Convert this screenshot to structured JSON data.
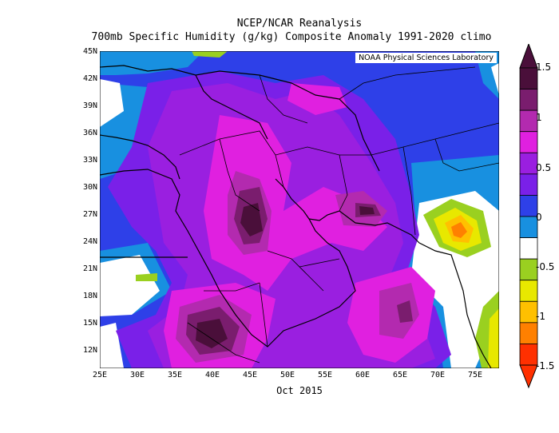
{
  "title": "NCEP/NCAR Reanalysis",
  "subtitle": "700mb Specific Humidity (g/kg) Composite Anomaly 1991-2020 climo",
  "credit": "NOAA Physical Sciences Laboratory",
  "x_label": "Oct 2015",
  "map": {
    "lon_range": [
      25,
      78
    ],
    "lat_range": [
      10,
      45
    ],
    "lat_ticks": [
      "45N",
      "42N",
      "39N",
      "36N",
      "33N",
      "30N",
      "27N",
      "24N",
      "21N",
      "18N",
      "15N",
      "12N"
    ],
    "lon_ticks": [
      "25E",
      "30E",
      "35E",
      "40E",
      "45E",
      "50E",
      "55E",
      "60E",
      "65E",
      "70E",
      "75E"
    ]
  },
  "colorbar": {
    "labels": [
      "1.5",
      "1",
      "0.5",
      "0",
      "-0.5",
      "-1",
      "-1.5"
    ],
    "colors": [
      "#4a0f3a",
      "#7a1d6e",
      "#b32aaf",
      "#e020e0",
      "#9a1fe0",
      "#7a20e8",
      "#2e40e8",
      "#1890e0",
      "#ffffff",
      "#9ad020",
      "#e8e800",
      "#ffc000",
      "#ff8000",
      "#ff3000"
    ]
  }
}
